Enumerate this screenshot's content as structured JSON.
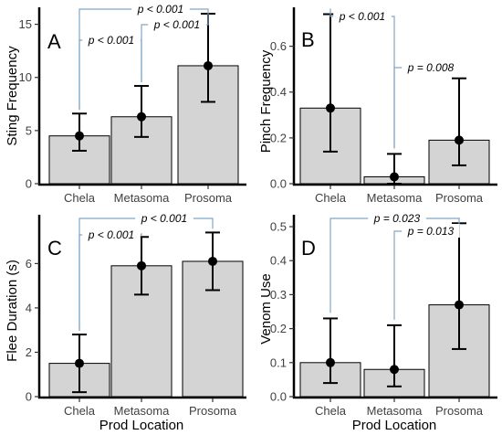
{
  "colors": {
    "bar_fill": "#d4d4d4",
    "bar_stroke": "#000000",
    "bracket": "#7fa6c9",
    "point": "#000000"
  },
  "shared_xlabel": "Prod Location",
  "chart_data": [
    {
      "type": "bar",
      "panel": "A",
      "categories": [
        "Chela",
        "Metasoma",
        "Prosoma"
      ],
      "values": [
        4.5,
        6.3,
        11.1
      ],
      "error_low": [
        3.1,
        4.4,
        7.7
      ],
      "error_high": [
        6.6,
        9.2,
        16.0
      ],
      "ylabel": "Sting Frequency",
      "xlabel": "",
      "ylim": [
        0,
        16.6
      ],
      "yticks": [
        0,
        5,
        10,
        15
      ],
      "ytick_labels": [
        "0",
        "5",
        "10",
        "15"
      ],
      "grid": false,
      "comparisons": [
        {
          "from": 0,
          "to": 2,
          "label": "p < 0.001"
        },
        {
          "from": 0,
          "to": 1,
          "label": "p < 0.001"
        },
        {
          "from": 1,
          "to": 2,
          "label": "p < 0.001"
        }
      ]
    },
    {
      "type": "bar",
      "panel": "B",
      "categories": [
        "Chela",
        "Metasoma",
        "Prosoma"
      ],
      "values": [
        0.33,
        0.03,
        0.19
      ],
      "error_low": [
        0.14,
        0.0,
        0.08
      ],
      "error_high": [
        0.74,
        0.13,
        0.46
      ],
      "ylabel": "Pinch Frequency",
      "xlabel": "",
      "ylim": [
        0,
        0.77
      ],
      "yticks": [
        0.0,
        0.2,
        0.4,
        0.6
      ],
      "ytick_labels": [
        "0.0",
        "0.2",
        "0.4",
        "0.6"
      ],
      "grid": false,
      "comparisons": [
        {
          "from": 0,
          "to": 1,
          "label": "p < 0.001"
        },
        {
          "from": 1,
          "to": 2,
          "label": "p = 0.008"
        }
      ]
    },
    {
      "type": "bar",
      "panel": "C",
      "categories": [
        "Chela",
        "Metasoma",
        "Prosoma"
      ],
      "values": [
        1.5,
        5.9,
        6.1
      ],
      "error_low": [
        0.2,
        4.6,
        4.8
      ],
      "error_high": [
        2.8,
        7.2,
        7.4
      ],
      "ylabel": "Flee Duration (s)",
      "xlabel": "Prod Location",
      "ylim": [
        0,
        8.2
      ],
      "yticks": [
        0,
        2,
        4,
        6
      ],
      "ytick_labels": [
        "0",
        "2",
        "4",
        "6"
      ],
      "grid": false,
      "comparisons": [
        {
          "from": 0,
          "to": 2,
          "label": "p < 0.001"
        },
        {
          "from": 0,
          "to": 1,
          "label": "p < 0.001"
        }
      ]
    },
    {
      "type": "bar",
      "panel": "D",
      "categories": [
        "Chela",
        "Metasoma",
        "Prosoma"
      ],
      "values": [
        0.1,
        0.08,
        0.27
      ],
      "error_low": [
        0.04,
        0.03,
        0.14
      ],
      "error_high": [
        0.23,
        0.21,
        0.51
      ],
      "ylabel": "Venom Use",
      "xlabel": "Prod Location",
      "ylim": [
        0,
        0.535
      ],
      "yticks": [
        0.0,
        0.1,
        0.2,
        0.3,
        0.4,
        0.5
      ],
      "ytick_labels": [
        "0.0",
        "0.1",
        "0.2",
        "0.3",
        "0.4",
        "0.5"
      ],
      "grid": false,
      "comparisons": [
        {
          "from": 0,
          "to": 2,
          "label": "p = 0.023"
        },
        {
          "from": 1,
          "to": 2,
          "label": "p = 0.013"
        }
      ]
    }
  ]
}
